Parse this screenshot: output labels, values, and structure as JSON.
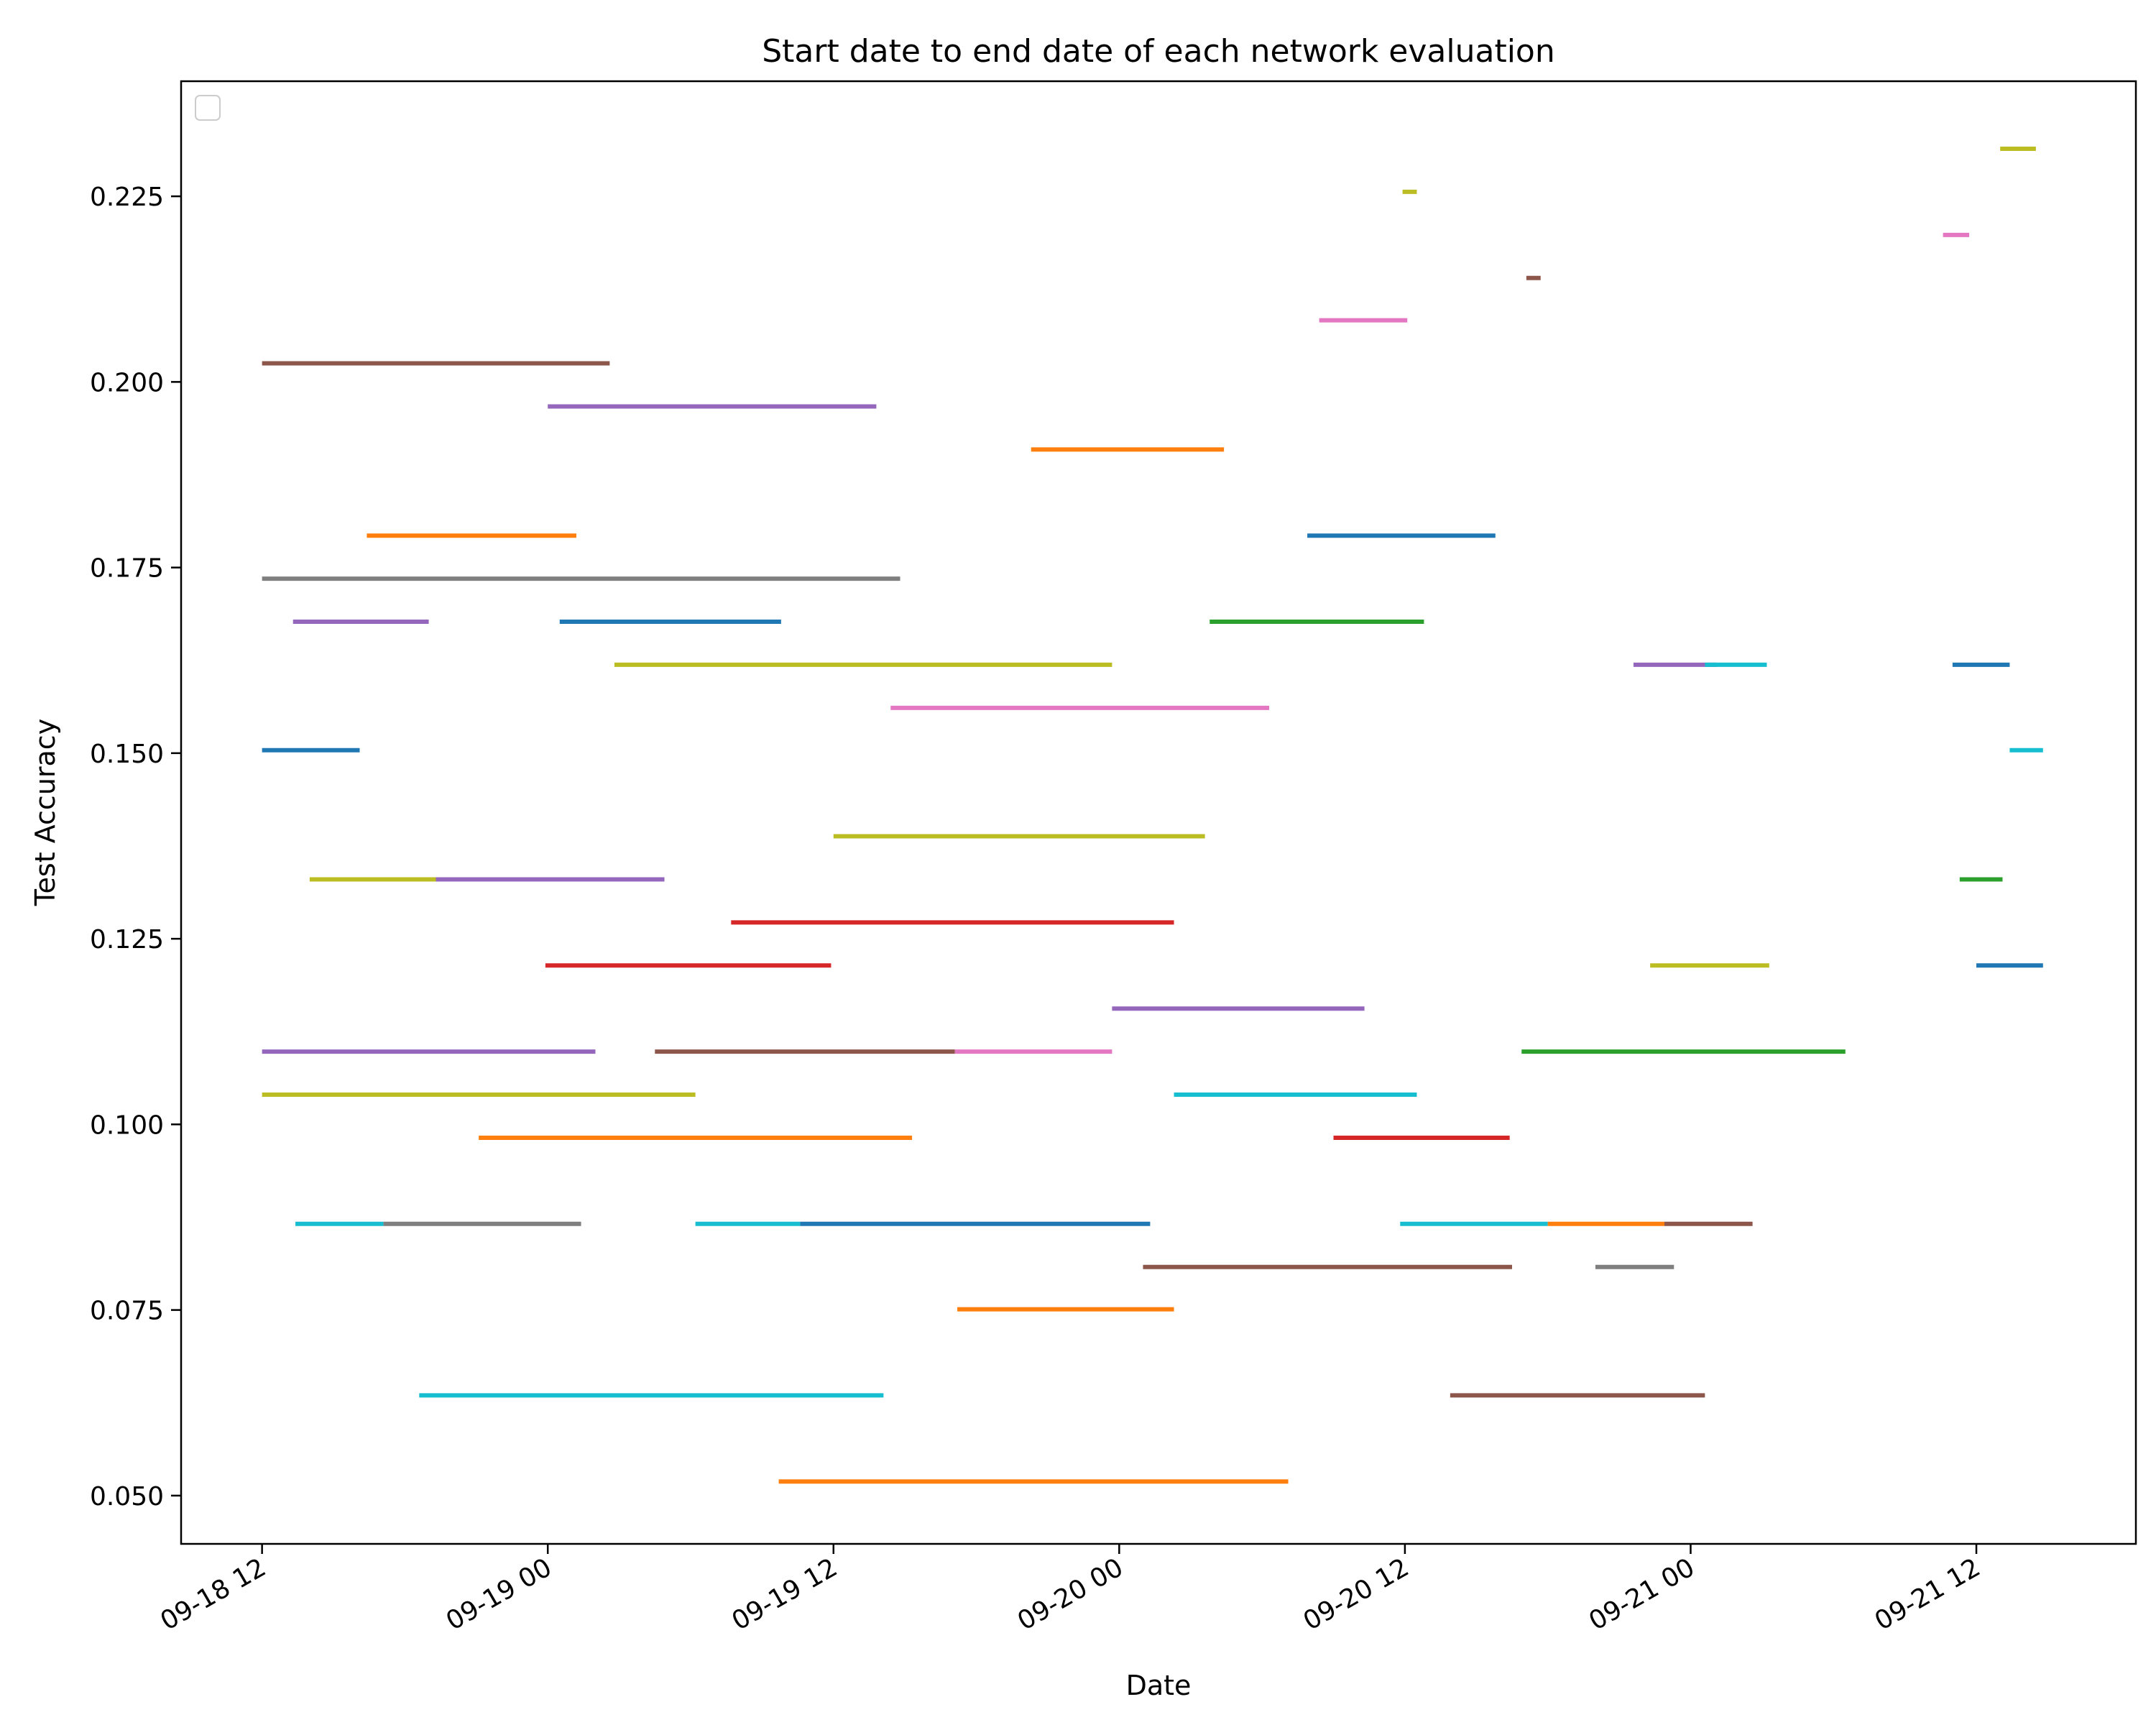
{
  "chart_data": {
    "type": "line",
    "title": "Start date to end date of each network evaluation",
    "xlabel": "Date",
    "ylabel": "Test Accuracy",
    "x_ticks": [
      "09-18 12",
      "09-19 00",
      "09-19 12",
      "09-20 00",
      "09-20 12",
      "09-21 00",
      "09-21 12"
    ],
    "y_ticks": [
      "0.050",
      "0.075",
      "0.100",
      "0.125",
      "0.150",
      "0.175",
      "0.200",
      "0.225"
    ],
    "xlim": [
      "2023-09-18 08:36",
      "2023-09-21 18:42"
    ],
    "ylim": [
      0.0435,
      0.2405
    ],
    "grid": false,
    "legend": "top-left (empty)",
    "palette": [
      "#1f77b4",
      "#ff7f0e",
      "#2ca02c",
      "#d62728",
      "#9467bd",
      "#8c564b",
      "#e377c2",
      "#7f7f7f",
      "#bcbd22",
      "#17becf"
    ],
    "segments": [
      {
        "start": "2023-09-18 12:00",
        "end": "2023-09-19 02:36",
        "y": 0.2025,
        "color": "#8c564b"
      },
      {
        "start": "2023-09-18 12:00",
        "end": "2023-09-19 14:48",
        "y": 0.1735,
        "color": "#7f7f7f"
      },
      {
        "start": "2023-09-19 00:00",
        "end": "2023-09-19 13:48",
        "y": 0.1967,
        "color": "#9467bd"
      },
      {
        "start": "2023-09-19 02:48",
        "end": "2023-09-19 23:42",
        "y": 0.1619,
        "color": "#bcbd22"
      },
      {
        "start": "2023-09-18 12:00",
        "end": "2023-09-19 06:12",
        "y": 0.104,
        "color": "#bcbd22"
      },
      {
        "start": "2023-09-18 12:00",
        "end": "2023-09-18 16:06",
        "y": 0.1504,
        "color": "#1f77b4"
      },
      {
        "start": "2023-09-18 13:18",
        "end": "2023-09-18 19:00",
        "y": 0.1677,
        "color": "#9467bd"
      },
      {
        "start": "2023-09-18 16:24",
        "end": "2023-09-19 01:12",
        "y": 0.1793,
        "color": "#ff7f0e"
      },
      {
        "start": "2023-09-19 00:30",
        "end": "2023-09-19 09:48",
        "y": 0.1677,
        "color": "#1f77b4"
      },
      {
        "start": "2023-09-18 14:00",
        "end": "2023-09-18 19:18",
        "y": 0.133,
        "color": "#bcbd22"
      },
      {
        "start": "2023-09-18 19:18",
        "end": "2023-09-19 04:54",
        "y": 0.133,
        "color": "#9467bd"
      },
      {
        "start": "2023-09-19 07:42",
        "end": "2023-09-20 02:18",
        "y": 0.1272,
        "color": "#d62728"
      },
      {
        "start": "2023-09-18 23:54",
        "end": "2023-09-19 11:54",
        "y": 0.1214,
        "color": "#d62728"
      },
      {
        "start": "2023-09-18 12:00",
        "end": "2023-09-19 02:00",
        "y": 0.1098,
        "color": "#9467bd"
      },
      {
        "start": "2023-09-19 04:30",
        "end": "2023-09-19 17:06",
        "y": 0.1098,
        "color": "#8c564b"
      },
      {
        "start": "2023-09-19 17:06",
        "end": "2023-09-19 23:42",
        "y": 0.1098,
        "color": "#e377c2"
      },
      {
        "start": "2023-09-18 21:06",
        "end": "2023-09-19 15:18",
        "y": 0.0982,
        "color": "#ff7f0e"
      },
      {
        "start": "2023-09-18 13:24",
        "end": "2023-09-18 17:06",
        "y": 0.0866,
        "color": "#17becf"
      },
      {
        "start": "2023-09-18 17:06",
        "end": "2023-09-19 01:24",
        "y": 0.0866,
        "color": "#7f7f7f"
      },
      {
        "start": "2023-09-19 06:12",
        "end": "2023-09-19 10:36",
        "y": 0.0866,
        "color": "#17becf"
      },
      {
        "start": "2023-09-19 10:36",
        "end": "2023-09-20 01:18",
        "y": 0.0866,
        "color": "#1f77b4"
      },
      {
        "start": "2023-09-18 18:36",
        "end": "2023-09-19 14:06",
        "y": 0.0635,
        "color": "#17becf"
      },
      {
        "start": "2023-09-19 09:42",
        "end": "2023-09-20 07:06",
        "y": 0.0519,
        "color": "#ff7f0e"
      },
      {
        "start": "2023-09-19 12:00",
        "end": "2023-09-20 03:36",
        "y": 0.1388,
        "color": "#bcbd22"
      },
      {
        "start": "2023-09-19 14:24",
        "end": "2023-09-20 06:18",
        "y": 0.1561,
        "color": "#e377c2"
      },
      {
        "start": "2023-09-19 20:18",
        "end": "2023-09-20 04:24",
        "y": 0.1909,
        "color": "#ff7f0e"
      },
      {
        "start": "2023-09-19 17:12",
        "end": "2023-09-20 02:18",
        "y": 0.0751,
        "color": "#ff7f0e"
      },
      {
        "start": "2023-09-20 01:00",
        "end": "2023-09-20 16:30",
        "y": 0.0808,
        "color": "#8c564b"
      },
      {
        "start": "2023-09-20 02:18",
        "end": "2023-09-20 12:30",
        "y": 0.104,
        "color": "#17becf"
      },
      {
        "start": "2023-09-19 23:42",
        "end": "2023-09-20 10:18",
        "y": 0.1156,
        "color": "#9467bd"
      },
      {
        "start": "2023-09-20 03:48",
        "end": "2023-09-20 12:48",
        "y": 0.1677,
        "color": "#2ca02c"
      },
      {
        "start": "2023-09-20 07:54",
        "end": "2023-09-20 15:48",
        "y": 0.1793,
        "color": "#1f77b4"
      },
      {
        "start": "2023-09-20 09:00",
        "end": "2023-09-20 16:24",
        "y": 0.0982,
        "color": "#d62728"
      },
      {
        "start": "2023-09-20 13:54",
        "end": "2023-09-21 00:36",
        "y": 0.0635,
        "color": "#8c564b"
      },
      {
        "start": "2023-09-20 16:54",
        "end": "2023-09-21 06:30",
        "y": 0.1098,
        "color": "#2ca02c"
      },
      {
        "start": "2023-09-20 11:48",
        "end": "2023-09-20 18:00",
        "y": 0.0866,
        "color": "#17becf"
      },
      {
        "start": "2023-09-20 18:00",
        "end": "2023-09-20 22:54",
        "y": 0.0866,
        "color": "#ff7f0e"
      },
      {
        "start": "2023-09-20 22:54",
        "end": "2023-09-21 02:36",
        "y": 0.0866,
        "color": "#8c564b"
      },
      {
        "start": "2023-09-20 21:36",
        "end": "2023-09-21 01:06",
        "y": 0.1619,
        "color": "#9467bd"
      },
      {
        "start": "2023-09-21 00:36",
        "end": "2023-09-21 03:12",
        "y": 0.1619,
        "color": "#17becf"
      },
      {
        "start": "2023-09-20 22:18",
        "end": "2023-09-21 03:18",
        "y": 0.1214,
        "color": "#bcbd22"
      },
      {
        "start": "2023-09-20 20:00",
        "end": "2023-09-20 23:18",
        "y": 0.0808,
        "color": "#7f7f7f"
      },
      {
        "start": "2023-09-21 11:00",
        "end": "2023-09-21 13:24",
        "y": 0.1619,
        "color": "#1f77b4"
      },
      {
        "start": "2023-09-21 11:18",
        "end": "2023-09-21 13:06",
        "y": 0.133,
        "color": "#2ca02c"
      },
      {
        "start": "2023-09-21 13:24",
        "end": "2023-09-21 14:48",
        "y": 0.1504,
        "color": "#17becf"
      },
      {
        "start": "2023-09-21 12:00",
        "end": "2023-09-21 14:48",
        "y": 0.1214,
        "color": "#1f77b4"
      },
      {
        "start": "2023-09-21 13:00",
        "end": "2023-09-21 14:30",
        "y": 0.2314,
        "color": "#bcbd22"
      },
      {
        "start": "2023-09-20 11:54",
        "end": "2023-09-20 12:30",
        "y": 0.2256,
        "color": "#bcbd22"
      },
      {
        "start": "2023-09-20 08:24",
        "end": "2023-09-20 12:06",
        "y": 0.2083,
        "color": "#e377c2"
      },
      {
        "start": "2023-09-20 17:06",
        "end": "2023-09-20 17:42",
        "y": 0.214,
        "color": "#8c564b"
      },
      {
        "start": "2023-09-21 10:36",
        "end": "2023-09-21 11:42",
        "y": 0.2198,
        "color": "#e377c2"
      }
    ]
  }
}
